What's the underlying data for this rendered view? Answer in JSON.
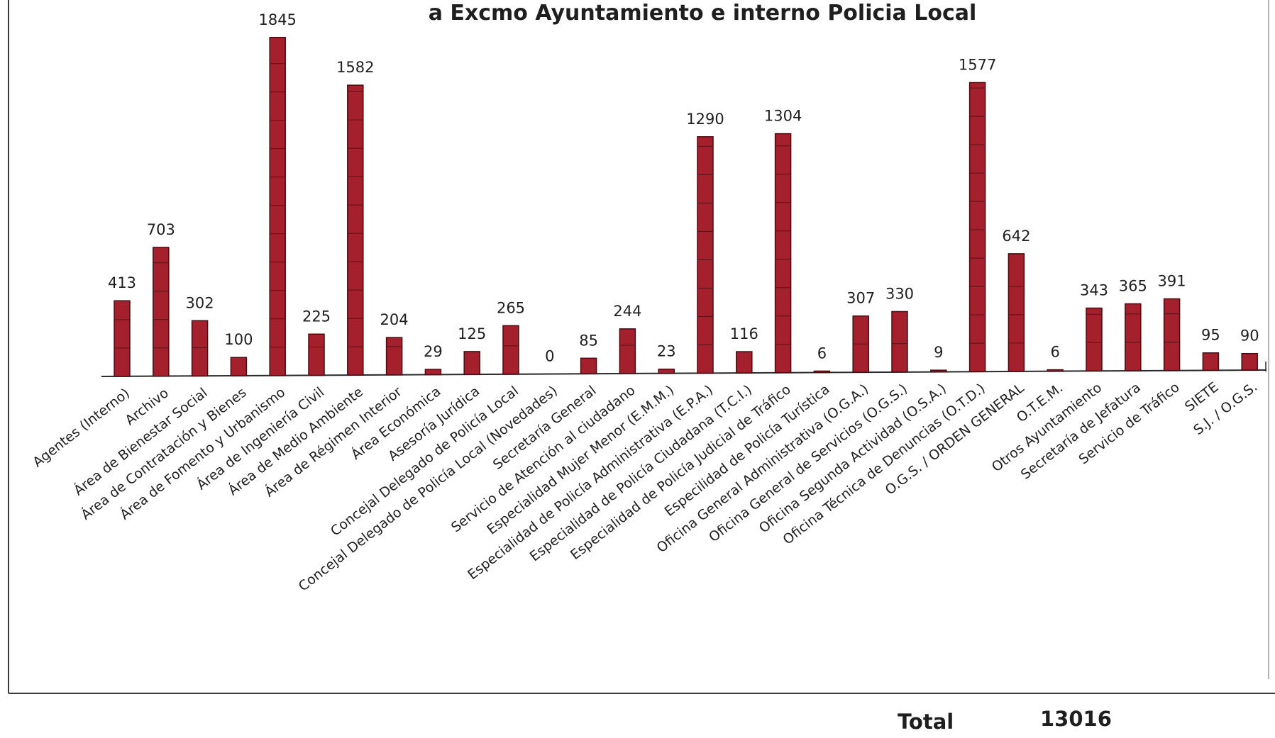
{
  "chart_data": {
    "type": "bar",
    "title": "a Excmo Ayuntamiento e interno Policia Local",
    "xlabel": "",
    "ylabel": "",
    "ylim": [
      0,
      1900
    ],
    "grid": false,
    "bar_color": "#a3202c",
    "bar_edge_color": "#4a0c12",
    "categories": [
      "Agentes (Interno)",
      "Archivo",
      "Área de Bienestar Social",
      "Área de Contratación y Bienes",
      "Área de Fomento y Urbanismo",
      "Área de Ingeniería Civil",
      "Área de Medio Ambiente",
      "Área de Régimen Interior",
      "Área Económica",
      "Asesoría Jurídica",
      "Concejal Delegado de Policía Local",
      "Concejal Delegado de Policía Local (Novedades)",
      "Secretaría General",
      "Servicio de Atención al ciudadano",
      "Especialidad Mujer Menor (E.M.M.)",
      "Especialidad de Policía Administrativa (E.P.A.)",
      "Especialidad de Policía Ciudadana (T.C.I.)",
      "Especialidad de Policía Judicial de Tráfico",
      "Especilidad de Policía Turística",
      "Oficina General Administrativa (O.G.A.)",
      "Oficina General de Servicios (O.G.S.)",
      "Oficina Segunda Actividad (O.S.A.)",
      "Oficina Técnica de Denuncias (O.T.D.)",
      "O.G.S. / ORDEN GENERAL",
      "O.T.E.M.",
      "Otros Ayuntamiento",
      "Secretaría de Jefatura",
      "Servicio de Tráfico",
      "SIETE",
      "S.J. / O.G.S."
    ],
    "values": [
      413,
      703,
      302,
      100,
      1845,
      225,
      1582,
      204,
      29,
      125,
      265,
      0,
      85,
      244,
      23,
      1290,
      116,
      1304,
      6,
      307,
      330,
      9,
      1577,
      642,
      6,
      343,
      365,
      391,
      95,
      90
    ]
  },
  "total": {
    "label": "Total",
    "value": "13016"
  }
}
